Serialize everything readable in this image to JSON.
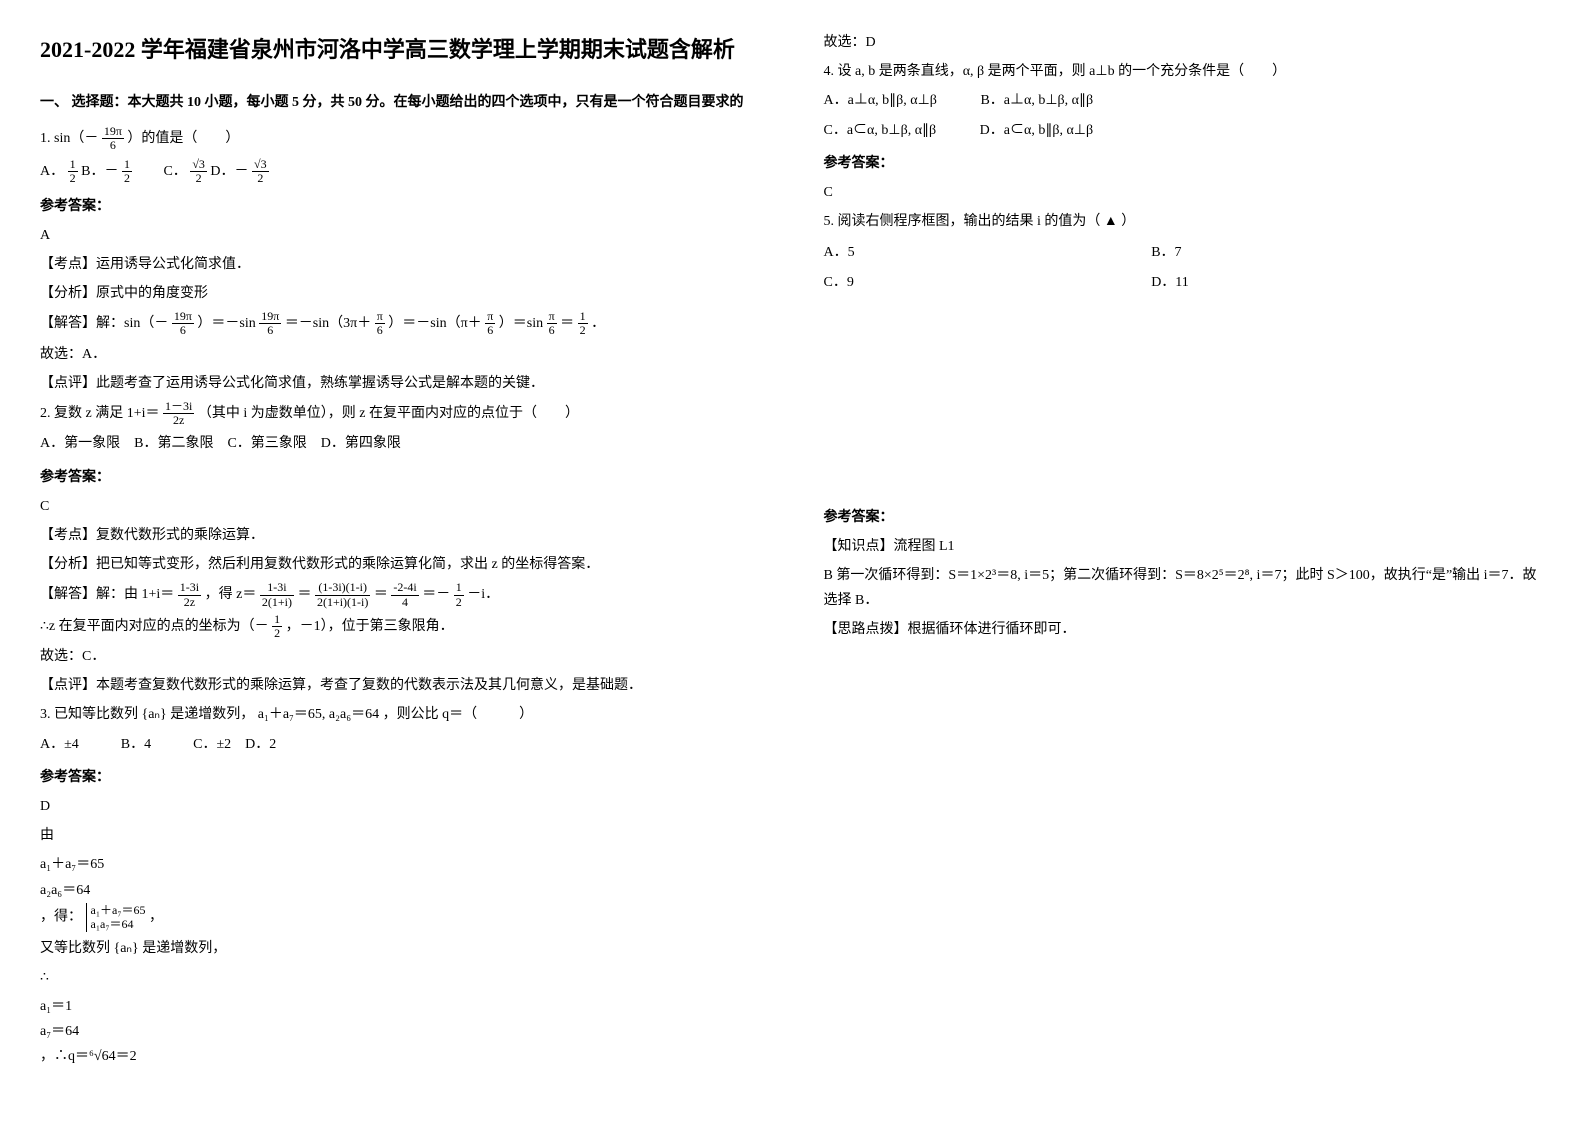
{
  "title": "2021-2022 学年福建省泉州市河洛中学高三数学理上学期期末试题含解析",
  "partA": "一、 选择题：本大题共 10 小题，每小题 5 分，共 50 分。在每小题给出的四个选项中，只有是一个符合题目要求的",
  "q1": {
    "stem_a": "1. sin（－",
    "frac_num": "19π",
    "frac_den": "6",
    "stem_b": "）的值是（　　）",
    "optA_pre": "A．",
    "optA_num": "1",
    "optA_den": "2",
    "optB_pre": " B．－",
    "optB_num": "1",
    "optB_den": "2",
    "optC_pre": "　　C．",
    "optC_num": "√3",
    "optC_den": "2",
    "optD_pre": " D．－",
    "optD_num": "√3",
    "optD_den": "2",
    "ans_label": "参考答案：",
    "ans": "A",
    "kp": "【考点】运用诱导公式化简求值．",
    "fx": "【分析】原式中的角度变形",
    "jd_a": "【解答】解：sin（－",
    "jd_b": "）＝－sin",
    "jd_c": "＝－sin（3π＋",
    "jd_pi6_num": "π",
    "jd_pi6_den": "6",
    "jd_d": "）＝－sin（π＋",
    "jd_e": "）＝sin",
    "jd_f": "＝",
    "jd_half_num": "1",
    "jd_half_den": "2",
    "jd_g": "．",
    "gx": "故选：A．",
    "dp": "【点评】此题考查了运用诱导公式化简求值，熟练掌握诱导公式是解本题的关键．"
  },
  "q2": {
    "stem_a": "2. 复数 z 满足 1+i＝",
    "frac_num": "1－3i",
    "frac_den": "2z",
    "stem_b": "（其中 i 为虚数单位），则 z 在复平面内对应的点位于（　　）",
    "opts": "A．第一象限　B．第二象限　C．第三象限　D．第四象限",
    "ans_label": "参考答案：",
    "ans": "C",
    "kp": "【考点】复数代数形式的乘除运算．",
    "fx": "【分析】把已知等式变形，然后利用复数代数形式的乘除运算化简，求出 z 的坐标得答案．",
    "jd_a": "【解答】解：由 1+i＝",
    "jd_f1_num": "1-3i",
    "jd_f1_den": "2z",
    "jd_b": "，得",
    "jd_eq": "z＝",
    "jd_f2_num": "1-3i",
    "jd_f2_den": "2(1+i)",
    "jd_eq2": "＝",
    "jd_f3_num": "(1-3i)(1-i)",
    "jd_f3_den": "2(1+i)(1-i)",
    "jd_eq3": "＝",
    "jd_f4_num": "-2-4i",
    "jd_f4_den": "4",
    "jd_eq4": "＝－",
    "jd_f5_num": "1",
    "jd_f5_den": "2",
    "jd_eq5": "－i．",
    "coord_a": "∴z 在复平面内对应的点的坐标为（－",
    "coord_num": "1",
    "coord_den": "2",
    "coord_b": "，－1），位于第三象限角．",
    "gx": "故选：C．",
    "dp": "【点评】本题考查复数代数形式的乘除运算，考查了复数的代数表示法及其几何意义，是基础题．"
  },
  "q3": {
    "stem_a": "3. 已知等比数列",
    "set": "{aₙ}",
    "stem_b": "是递增数列，",
    "cond": "a₁＋a₇＝65, a₂a₆＝64",
    "stem_c": "，则公比 q＝（　　　）",
    "opts": "A．±4　　　B．4　　　C．±2　D．2",
    "ans_label": "参考答案：",
    "ans": "D",
    "by": "由",
    "c1a": "a₁＋a₇＝65",
    "c1b": "a₂a₆＝64",
    "get": "，得：",
    "c2a": "a₁＋a₇＝65",
    "c2b": "a₁a₇＝64",
    "comma": "，",
    "inc": "又等比数列 {aₙ} 是递增数列，",
    "so": "∴",
    "c3a": "a₁＝1",
    "c3b": "a₇＝64",
    "so2": "，∴q＝⁶√64＝2",
    "gx": "故选：D"
  },
  "q4": {
    "stem": "4. 设 a, b 是两条直线，α, β 是两个平面，则 a⊥b 的一个充分条件是（　　）",
    "optA": "A．a⊥α, b∥β, α⊥β",
    "optB": "B．a⊥α, b⊥β, α∥β",
    "optC": "C．a⊂α, b⊥β, α∥β",
    "optD": "D．a⊂α, b∥β, α⊥β",
    "ans_label": "参考答案：",
    "ans": "C"
  },
  "q5": {
    "stem": "5. 阅读右侧程序框图，输出的结果 i 的值为（ ▲ ）",
    "optA": "A．5",
    "optB": "B．7",
    "optC": "C．9",
    "optD": "D．11",
    "ans_label": "参考答案：",
    "kp": "【知识点】流程图 L1",
    "ans": "B 第一次循环得到：S＝1×2³＝8, i＝5；第二次循环得到：S＝8×2⁵＝2⁸, i＝7；此时 S＞100，故执行“是”输出 i＝7．故选择 B．",
    "sp": "【思路点拨】根据循环体进行循环即可．"
  }
}
